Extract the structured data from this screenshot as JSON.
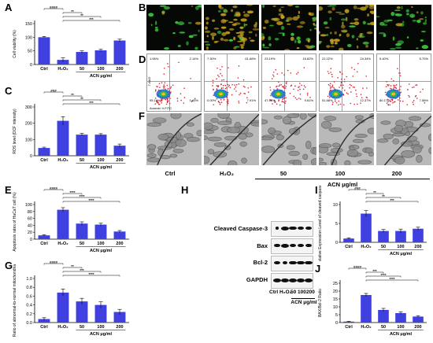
{
  "panels": {
    "A": "A",
    "B": "B",
    "C": "C",
    "D": "D",
    "E": "E",
    "F": "F",
    "G": "G",
    "H": "H",
    "I": "I",
    "J": "J"
  },
  "groups": {
    "labels": [
      "Ctrl",
      "H₂O₂",
      "50",
      "100",
      "200"
    ],
    "acn": "ACN μg/ml"
  },
  "colors": {
    "bar": "#4040e0",
    "microscopy_green": "#3ccb3c",
    "microscopy_red": "#c8a020"
  },
  "flow": {
    "xaxis": "Annexin V-FITC",
    "yaxis": "7-AAD",
    "quadrants": [
      [
        "1.06%",
        "2.14%",
        "95.16%",
        "1.65%"
      ],
      [
        "7.30%",
        "61.66%",
        "0.00%",
        "7.91%"
      ],
      [
        "23.19%",
        "16.82%",
        "47.36%",
        "9.61%"
      ],
      [
        "22.22%",
        "24.34%",
        "51.88%",
        "12.37%"
      ],
      [
        "5.40%",
        "5.70%",
        "80.17%",
        "7.58%"
      ]
    ]
  },
  "western": {
    "proteins": [
      "Cleaved Caspase-3",
      "Bax",
      "Bcl-2",
      "GAPDH"
    ],
    "lanes": [
      "Ctrl",
      "H₂O₂",
      "50",
      "100",
      "200"
    ],
    "acn": "ACN μg/ml"
  },
  "chart_data": [
    {
      "panel": "A",
      "type": "bar",
      "categories": [
        "Ctrl",
        "H₂O₂",
        "50",
        "100",
        "200"
      ],
      "values": [
        100,
        17,
        46,
        52,
        88
      ],
      "errors": [
        3,
        7,
        4,
        4,
        5
      ],
      "ylabel": "Cell viability (%)",
      "xlabel": "ACN μg/ml",
      "ylim": [
        0,
        150
      ],
      "yticks": [
        "0",
        "50",
        "100",
        "150"
      ],
      "sig": [
        {
          "from": 0,
          "to": 1,
          "label": "####"
        },
        {
          "from": 1,
          "to": 2,
          "label": "**"
        },
        {
          "from": 1,
          "to": 3,
          "label": "**"
        },
        {
          "from": 1,
          "to": 4,
          "label": "***"
        }
      ]
    },
    {
      "panel": "C",
      "type": "bar",
      "categories": [
        "Ctrl",
        "H₂O₂",
        "50",
        "100",
        "200"
      ],
      "values": [
        48,
        215,
        130,
        130,
        62
      ],
      "errors": [
        5,
        25,
        8,
        6,
        10
      ],
      "ylabel": "ROS level (DCF intensity)",
      "xlabel": "ACN μg/ml",
      "ylim": [
        0,
        300
      ],
      "yticks": [
        "0",
        "100",
        "200",
        "300"
      ],
      "sig": [
        {
          "from": 0,
          "to": 1,
          "label": "###"
        },
        {
          "from": 1,
          "to": 2,
          "label": "**"
        },
        {
          "from": 1,
          "to": 3,
          "label": "**"
        },
        {
          "from": 1,
          "to": 4,
          "label": "***"
        }
      ]
    },
    {
      "panel": "E",
      "type": "bar",
      "categories": [
        "Ctrl",
        "H₂O₂",
        "50",
        "100",
        "200"
      ],
      "values": [
        11,
        85,
        45,
        42,
        22
      ],
      "errors": [
        2,
        6,
        5,
        4,
        3
      ],
      "ylabel": "Apoptosis rates of HaCaT cell (%)",
      "xlabel": "ACN μg/ml",
      "ylim": [
        0,
        100
      ],
      "yticks": [
        "0",
        "20",
        "40",
        "60",
        "80",
        "100"
      ],
      "sig": [
        {
          "from": 0,
          "to": 1,
          "label": "####"
        },
        {
          "from": 1,
          "to": 2,
          "label": "****"
        },
        {
          "from": 1,
          "to": 3,
          "label": "****"
        },
        {
          "from": 1,
          "to": 4,
          "label": "****"
        }
      ]
    },
    {
      "panel": "G",
      "type": "bar",
      "categories": [
        "Ctrl",
        "H₂O₂",
        "50",
        "100",
        "200"
      ],
      "values": [
        0.08,
        0.68,
        0.48,
        0.4,
        0.24
      ],
      "errors": [
        0.03,
        0.08,
        0.07,
        0.07,
        0.06
      ],
      "ylabel": "Ratio of abnormal-to-normal mitochondria",
      "xlabel": "ACN μg/ml",
      "ylim": [
        0,
        1.0
      ],
      "yticks": [
        "0.0",
        "0.2",
        "0.4",
        "0.6",
        "0.8",
        "1.0"
      ],
      "sig": [
        {
          "from": 0,
          "to": 1,
          "label": "####"
        },
        {
          "from": 1,
          "to": 2,
          "label": "**"
        },
        {
          "from": 1,
          "to": 3,
          "label": "***"
        },
        {
          "from": 1,
          "to": 4,
          "label": "****"
        }
      ]
    },
    {
      "panel": "I",
      "type": "bar",
      "categories": [
        "Ctrl",
        "H₂O₂",
        "50",
        "100",
        "200"
      ],
      "values": [
        1.0,
        7.6,
        3.0,
        3.0,
        3.6
      ],
      "errors": [
        0.2,
        0.8,
        0.4,
        0.5,
        0.4
      ],
      "ylabel": "Relative Expression Level of cleaved caspase3",
      "xlabel": "ACN μg/ml",
      "ylim": [
        0,
        10
      ],
      "yticks": [
        "0",
        "5",
        "10"
      ],
      "sig": [
        {
          "from": 0,
          "to": 1,
          "label": "###"
        },
        {
          "from": 1,
          "to": 2,
          "label": "**"
        },
        {
          "from": 1,
          "to": 3,
          "label": "**"
        },
        {
          "from": 1,
          "to": 4,
          "label": "***"
        }
      ]
    },
    {
      "panel": "J",
      "type": "bar",
      "categories": [
        "Ctrl",
        "H₂O₂",
        "50",
        "100",
        "200"
      ],
      "values": [
        0.6,
        17.5,
        8.0,
        6.0,
        3.8
      ],
      "errors": [
        0.2,
        1.0,
        1.0,
        0.8,
        0.6
      ],
      "ylabel": "BAX/Bcl-2 Ratio",
      "xlabel": "ACN μg/ml",
      "ylim": [
        0,
        25
      ],
      "yticks": [
        "0",
        "5",
        "10",
        "15",
        "20",
        "25"
      ],
      "sig": [
        {
          "from": 0,
          "to": 1,
          "label": "####"
        },
        {
          "from": 1,
          "to": 2,
          "label": "***"
        },
        {
          "from": 1,
          "to": 3,
          "label": "****"
        },
        {
          "from": 1,
          "to": 4,
          "label": "****"
        }
      ]
    }
  ]
}
